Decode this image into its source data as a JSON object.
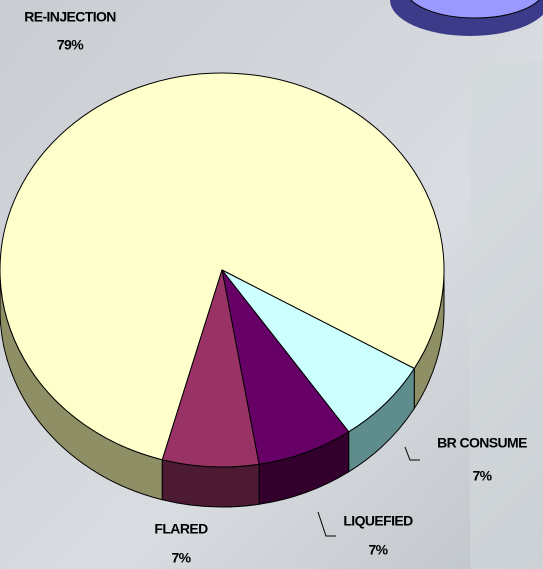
{
  "chart_data": {
    "type": "pie",
    "categories": [
      "RE-INJECTION",
      "BR CONSUME",
      "LIQUEFIED",
      "FLARED"
    ],
    "values": [
      79,
      7,
      7,
      7
    ],
    "value_labels": [
      "79%",
      "7%",
      "7%",
      "7%"
    ],
    "colors": [
      "#ffffcc",
      "#ccffff",
      "#660066",
      "#993366"
    ],
    "side_colors": [
      "#8f8f66",
      "#5f8c8c",
      "#33002e",
      "#4d1a33"
    ]
  }
}
